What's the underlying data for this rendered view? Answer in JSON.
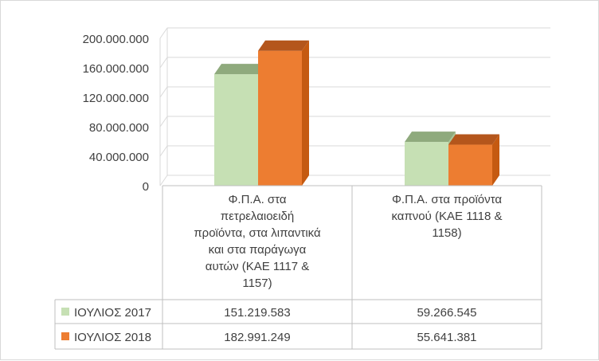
{
  "chart_data": {
    "type": "bar",
    "style": "3d-clustered-column-with-data-table",
    "categories": [
      [
        "Φ.Π.Α. στα",
        "πετρελαιοειδή",
        "προϊόντα, στα λιπαντικά",
        "και στα παράγωγα",
        "αυτών (ΚΑΕ 1117 &",
        "1157)"
      ],
      [
        "Φ.Π.Α. στα προϊόντα",
        "καπνού (ΚΑΕ 1118 &",
        "1158)"
      ]
    ],
    "series": [
      {
        "name": "ΙΟΥΛΙΟΣ 2017",
        "values": [
          151219583,
          59266545
        ],
        "labels": [
          "151.219.583",
          "59.266.545"
        ],
        "color": "#c6e0b4",
        "top_color": "#8faa7d",
        "side_color": "#a9c596"
      },
      {
        "name": "ΙΟΥΛΙΟΣ 2018",
        "values": [
          182991249,
          55641381
        ],
        "labels": [
          "182.991.249",
          "55.641.381"
        ],
        "color": "#ed7d31",
        "top_color": "#b4561c",
        "side_color": "#c55a11"
      }
    ],
    "y_ticks": [
      "0",
      "40.000.000",
      "80.000.000",
      "120.000.000",
      "160.000.000",
      "200.000.000"
    ],
    "ylim": [
      0,
      200000000
    ],
    "grid": true,
    "legend": "data-table-left"
  }
}
